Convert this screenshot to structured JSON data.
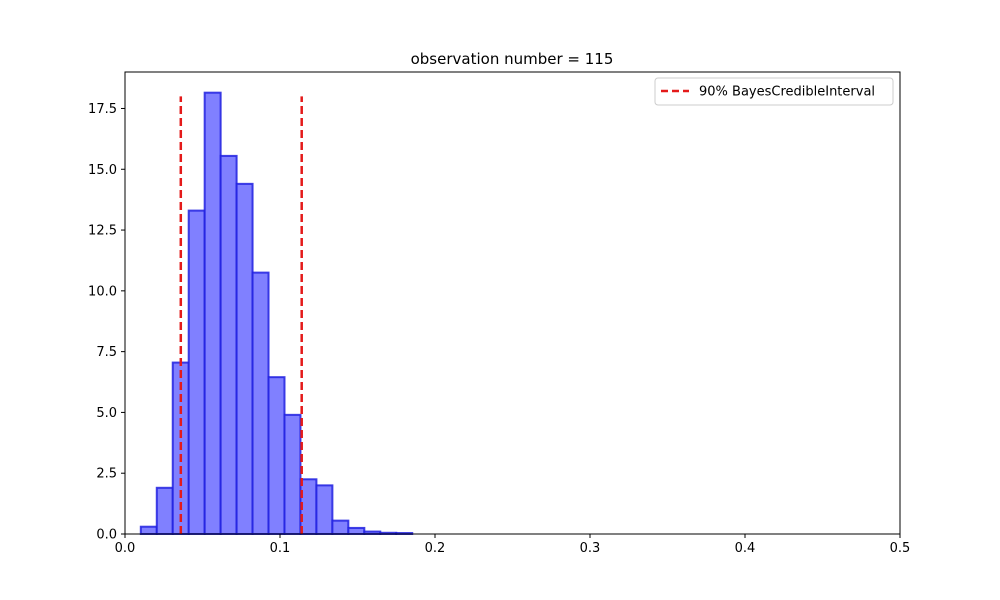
{
  "chart_data": {
    "type": "bar",
    "title": "observation number = 115",
    "xlabel": "",
    "ylabel": "",
    "xlim": [
      0,
      0.5
    ],
    "ylim": [
      0,
      19.0
    ],
    "grid": false,
    "legend_placement": "top-right",
    "x_ticks": [
      {
        "value": 0.0,
        "label": "0.0"
      },
      {
        "value": 0.1,
        "label": "0.1"
      },
      {
        "value": 0.2,
        "label": "0.2"
      },
      {
        "value": 0.3,
        "label": "0.3"
      },
      {
        "value": 0.4,
        "label": "0.4"
      },
      {
        "value": 0.5,
        "label": "0.5"
      }
    ],
    "y_ticks": [
      {
        "value": 0.0,
        "label": "0.0"
      },
      {
        "value": 2.5,
        "label": "2.5"
      },
      {
        "value": 5.0,
        "label": "5.0"
      },
      {
        "value": 7.5,
        "label": "7.5"
      },
      {
        "value": 10.0,
        "label": "10.0"
      },
      {
        "value": 12.5,
        "label": "12.5"
      },
      {
        "value": 15.0,
        "label": "15.0"
      },
      {
        "value": 17.5,
        "label": "17.5"
      }
    ],
    "bin_width": 0.0103,
    "bins": [
      {
        "start": 0.0102,
        "density": 0.3
      },
      {
        "start": 0.0205,
        "density": 1.9
      },
      {
        "start": 0.0308,
        "density": 7.05
      },
      {
        "start": 0.0411,
        "density": 13.3
      },
      {
        "start": 0.0514,
        "density": 18.15
      },
      {
        "start": 0.0617,
        "density": 15.55
      },
      {
        "start": 0.072,
        "density": 14.4
      },
      {
        "start": 0.0823,
        "density": 10.75
      },
      {
        "start": 0.0926,
        "density": 6.45
      },
      {
        "start": 0.1029,
        "density": 4.9
      },
      {
        "start": 0.1132,
        "density": 2.25
      },
      {
        "start": 0.1235,
        "density": 2.0
      },
      {
        "start": 0.1338,
        "density": 0.55
      },
      {
        "start": 0.1441,
        "density": 0.25
      },
      {
        "start": 0.1544,
        "density": 0.1
      },
      {
        "start": 0.1647,
        "density": 0.05
      },
      {
        "start": 0.175,
        "density": 0.04
      }
    ],
    "bar_fill": "#8080ff",
    "bar_edge": "#2020e0",
    "credible_interval": {
      "label": "90% BayesCredibleInterval",
      "lower": 0.036,
      "upper": 0.114,
      "line_top": 18.0,
      "color": "#e41a1a",
      "style": "dashed"
    }
  }
}
